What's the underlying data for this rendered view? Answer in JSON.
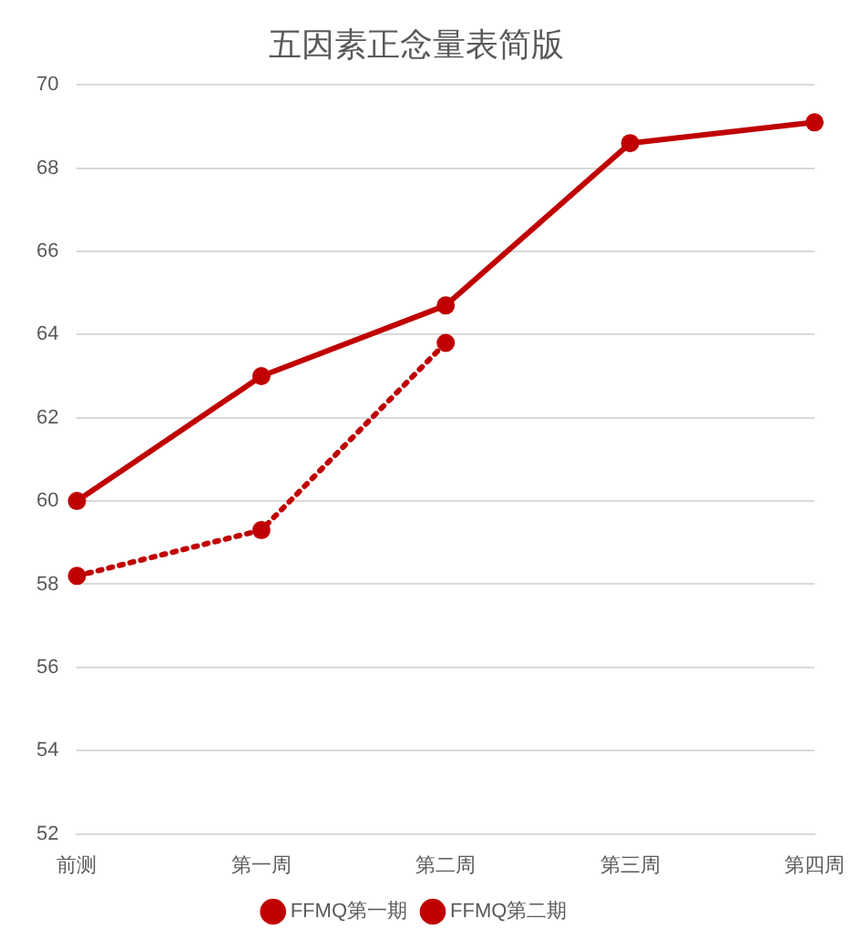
{
  "chart_data": {
    "type": "line",
    "title": "五因素正念量表简版",
    "categories": [
      "前测",
      "第一周",
      "第二周",
      "第三周",
      "第四周"
    ],
    "series": [
      {
        "name": "FFMQ第一期",
        "color": "#c00000",
        "values": [
          60.0,
          63.0,
          64.7,
          68.6,
          69.1
        ],
        "line_style": "solid"
      },
      {
        "name": "FFMQ第二期",
        "color": "#c00000",
        "values": [
          58.2,
          59.3,
          63.8,
          null,
          null
        ],
        "line_style": "dotted"
      }
    ],
    "ylim": [
      52,
      70
    ],
    "yticks": [
      52,
      54,
      56,
      58,
      60,
      62,
      64,
      66,
      68,
      70
    ],
    "grid": "y",
    "legend": "bottom",
    "marker": "circle"
  }
}
